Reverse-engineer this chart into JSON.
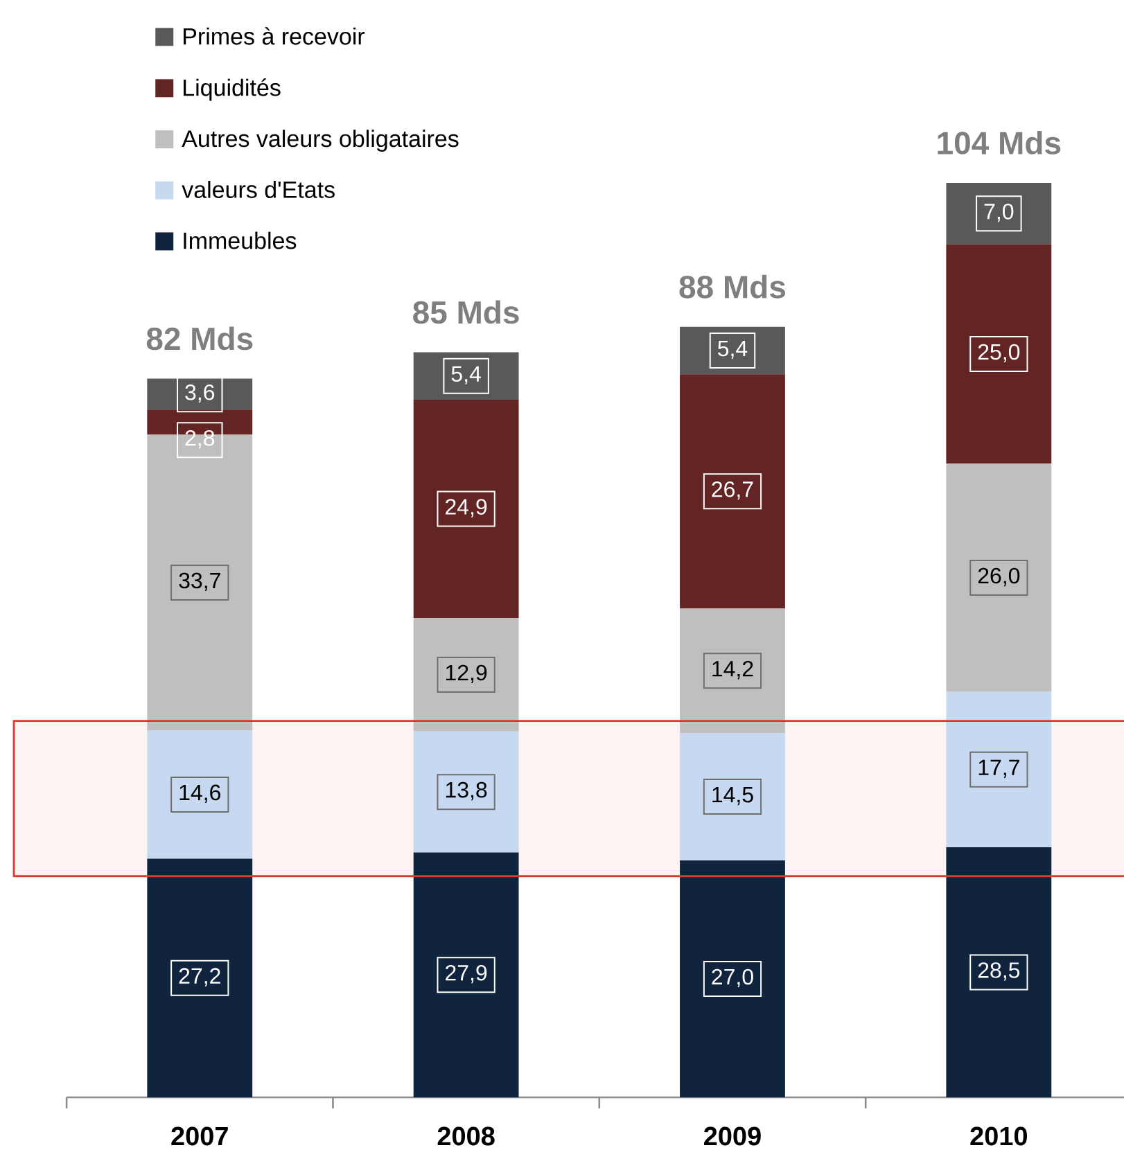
{
  "chart_data": {
    "type": "bar",
    "stacked": true,
    "categories": [
      "2007",
      "2008",
      "2009",
      "2010"
    ],
    "series": [
      {
        "name": "Immeubles",
        "color": "#10243e",
        "values": [
          27.2,
          27.9,
          27.0,
          28.5
        ],
        "value_labels": [
          "27,2",
          "27,9",
          "27,0",
          "28,5"
        ]
      },
      {
        "name": "valeurs d'Etats",
        "color": "#c6d9f0",
        "values": [
          14.6,
          13.8,
          14.5,
          17.7
        ],
        "value_labels": [
          "14,6",
          "13,8",
          "14,5",
          "17,7"
        ]
      },
      {
        "name": "Autres valeurs obligataires",
        "color": "#bfbfbf",
        "values": [
          33.7,
          12.9,
          14.2,
          26.0
        ],
        "value_labels": [
          "33,7",
          "12,9",
          "14,2",
          "26,0"
        ]
      },
      {
        "name": "Liquidités",
        "color": "#632523",
        "values": [
          2.8,
          24.9,
          26.7,
          25.0
        ],
        "value_labels": [
          "2,8",
          "24,9",
          "26,7",
          "25,0"
        ]
      },
      {
        "name": "Primes à recevoir",
        "color": "#595959",
        "values": [
          3.6,
          5.4,
          5.4,
          7.0
        ],
        "value_labels": [
          "3,6",
          "5,4",
          "5,4",
          "7,0"
        ]
      }
    ],
    "totals": [
      "82 Mds",
      "85 Mds",
      "88 Mds",
      "104 Mds"
    ],
    "legend": "top left",
    "bands": [
      {
        "axis": "y",
        "from": 25.2,
        "to": 42.9,
        "color": "#e0392c"
      }
    ]
  }
}
